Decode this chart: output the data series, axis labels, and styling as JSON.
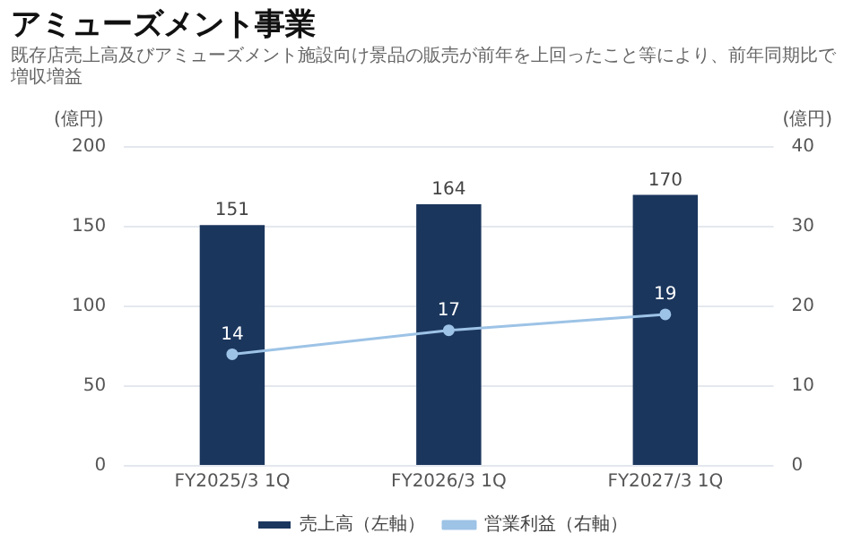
{
  "chart_data": {
    "type": "bar",
    "title": "アミューズメント事業",
    "subtitle": "既存店売上高及びアミューズメント施設向け景品の販売が前年を上回ったこと等により、前年同期比で増収増益",
    "ylabel": "(億円)",
    "y2label": "(億円)",
    "categories": [
      "FY2025/3 1Q",
      "FY2026/3 1Q",
      "FY2027/3 1Q"
    ],
    "series": [
      {
        "name": "売上高（左軸）",
        "color": "#1b365d",
        "values": [
          151,
          164,
          170
        ]
      },
      {
        "name": "営業利益（右軸）",
        "type": "line",
        "axis": "y2",
        "color": "#9dc3e6",
        "values": [
          14,
          17,
          19
        ]
      }
    ],
    "ylim": [
      0,
      200
    ],
    "yticks": [
      0,
      50,
      100,
      150,
      200
    ],
    "y2lim": [
      0,
      40
    ],
    "y2ticks": [
      0,
      10,
      20,
      30,
      40
    ],
    "grid": "y",
    "legend": "bottom",
    "marker": "circle",
    "line_style": "solid",
    "data_labels": true
  }
}
